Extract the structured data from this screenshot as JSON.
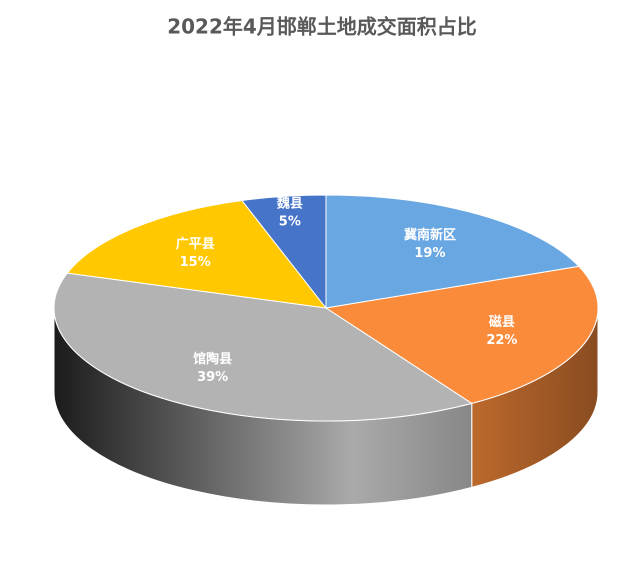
{
  "chart_data": {
    "type": "pie3d",
    "title": "2022年4月邯郸土地成交面积占比",
    "categories": [
      "冀南新区",
      "磁县",
      "馆陶县",
      "广平县",
      "魏县"
    ],
    "values": [
      19,
      22,
      39,
      15,
      5
    ],
    "value_labels": [
      "19%",
      "22%",
      "39%",
      "15%",
      "5%"
    ],
    "colors": [
      "#68a7e2",
      "#f98b3b",
      "#b3b3b3",
      "#ffc800",
      "#4674c8"
    ]
  }
}
